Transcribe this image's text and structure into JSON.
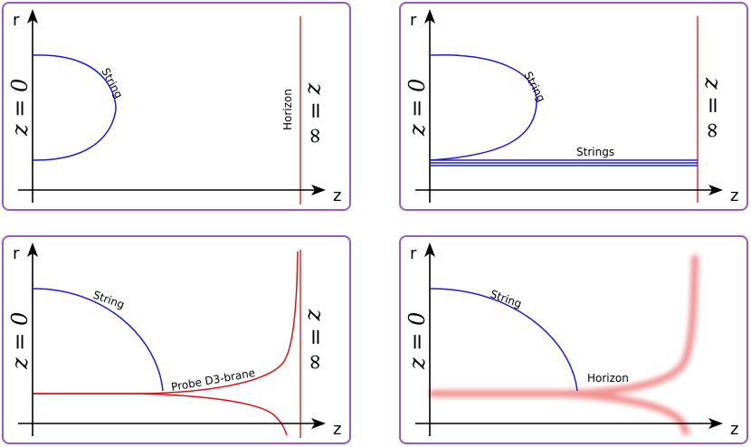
{
  "panels": [
    {
      "axis_r": "r",
      "axis_z": "z",
      "left_label": "z = 0",
      "right_label": "z = ∞",
      "curve_label": "String",
      "boundary_label": "Horizon"
    },
    {
      "axis_r": "r",
      "axis_z": "z",
      "left_label": "z = 0",
      "right_label": "z = ∞",
      "curve_label": "String",
      "strings_label": "Strings"
    },
    {
      "axis_r": "r",
      "axis_z": "z",
      "left_label": "z = 0",
      "right_label": "z = ∞",
      "curve_label": "String",
      "brane_label": "Probe D3-brane"
    },
    {
      "axis_r": "r",
      "axis_z": "z",
      "left_label": "z = 0",
      "curve_label": "String",
      "horizon_label": "Horizon"
    }
  ],
  "colors": {
    "string": "#1a1adc",
    "horizon": "#e83a3a",
    "brane": "#dd1111",
    "frame": "#9b59c6"
  }
}
